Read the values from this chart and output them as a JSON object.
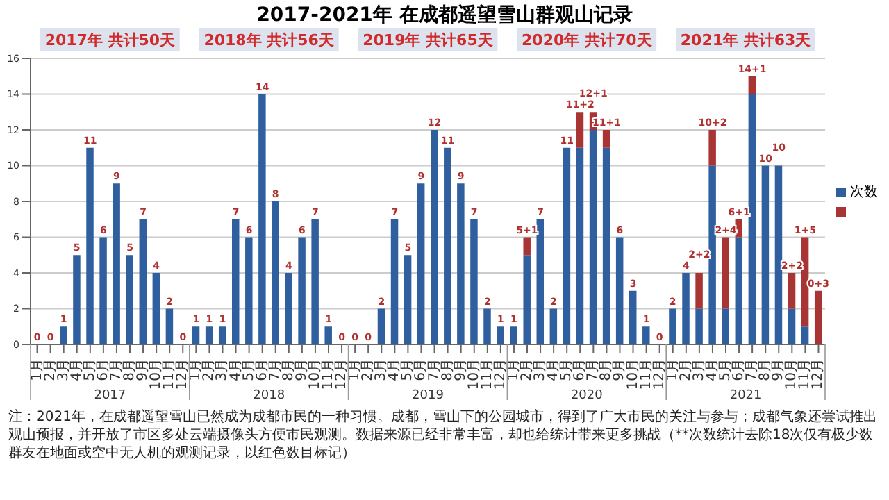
{
  "chart_data": {
    "type": "bar",
    "title": "2017-2021年 在成都遥望雪山群观山记录",
    "categories": [
      "1月",
      "2月",
      "3月",
      "4月",
      "5月",
      "6月",
      "7月",
      "8月",
      "9月",
      "10月",
      "11月",
      "12月",
      "1月",
      "2月",
      "3月",
      "4月",
      "5月",
      "6月",
      "7月",
      "8月",
      "9月",
      "10月",
      "11月",
      "12月",
      "1月",
      "2月",
      "3月",
      "4月",
      "5月",
      "6月",
      "7月",
      "8月",
      "9月",
      "10月",
      "11月",
      "12月",
      "1月",
      "2月",
      "3月",
      "4月",
      "5月",
      "6月",
      "7月",
      "8月",
      "9月",
      "10月",
      "11月",
      "12月",
      "1月",
      "2月",
      "3月",
      "4月",
      "5月",
      "6月",
      "7月",
      "8月",
      "9月",
      "10月",
      "11月",
      "12月"
    ],
    "series": [
      {
        "name": "次数",
        "color": "#2f5f9e",
        "values": [
          0,
          0,
          1,
          5,
          11,
          6,
          9,
          5,
          7,
          4,
          2,
          0,
          1,
          1,
          1,
          7,
          6,
          14,
          8,
          4,
          6,
          7,
          1,
          0,
          0,
          0,
          2,
          7,
          5,
          9,
          12,
          11,
          9,
          7,
          2,
          1,
          1,
          5,
          7,
          2,
          11,
          11,
          12,
          11,
          6,
          3,
          1,
          0,
          2,
          4,
          2,
          10,
          2,
          6,
          14,
          10,
          10,
          2,
          1,
          0
        ],
        "value_labels": [
          "0",
          "0",
          "1",
          "5",
          "11",
          "6",
          "9",
          "5",
          "7",
          "4",
          "2",
          "0",
          "1",
          "1",
          "1",
          "7",
          "6",
          "14",
          "8",
          "4",
          "6",
          "7",
          "1",
          "0",
          "0",
          "0",
          "2",
          "7",
          "5",
          "9",
          "12",
          "11",
          "9",
          "7",
          "2",
          "1",
          "1",
          null,
          "7",
          "2",
          "11",
          null,
          null,
          null,
          "6",
          "3",
          "1",
          "0",
          "2",
          "4",
          null,
          null,
          null,
          null,
          null,
          "10",
          "10",
          null,
          null,
          null
        ]
      },
      {
        "color": "#a83434",
        "value_labels": [
          null,
          null,
          null,
          null,
          null,
          null,
          null,
          null,
          null,
          null,
          null,
          null,
          null,
          null,
          null,
          null,
          null,
          null,
          null,
          null,
          null,
          null,
          null,
          null,
          null,
          null,
          null,
          null,
          null,
          null,
          null,
          null,
          null,
          null,
          null,
          null,
          null,
          "5+1",
          null,
          null,
          null,
          "11+2",
          "12+1",
          "11+1",
          null,
          null,
          null,
          null,
          null,
          null,
          "2+2",
          "10+2",
          "2+4",
          "6+1",
          "14+1",
          null,
          null,
          "2+2",
          "1+5",
          "0+3"
        ],
        "values": [
          null,
          null,
          null,
          null,
          null,
          null,
          null,
          null,
          null,
          null,
          null,
          null,
          null,
          null,
          null,
          null,
          null,
          null,
          null,
          null,
          null,
          null,
          null,
          null,
          null,
          null,
          null,
          null,
          null,
          null,
          null,
          null,
          null,
          null,
          null,
          null,
          null,
          1,
          null,
          null,
          null,
          2,
          1,
          1,
          null,
          null,
          null,
          null,
          null,
          null,
          2,
          2,
          4,
          1,
          1,
          null,
          null,
          2,
          5,
          3
        ]
      }
    ],
    "stacked": true,
    "ylim": [
      0,
      16
    ],
    "yticks": [
      0,
      2,
      4,
      6,
      8,
      10,
      12,
      14,
      16
    ],
    "grid": "y",
    "legend": "right",
    "annotations": [
      "2017年 共计50天",
      "2018年 共计56天",
      "2019年 共计65天",
      "2020年 共计70天",
      "2021年 共计63天",
      "2017",
      "2018",
      "2019",
      "2020",
      "2021",
      "注：2021年，在成都遥望雪山已然成为成都市民的一种习惯。成都，雪山下的公园城市，得到了广大市民的关注与参与；成都气象还尝试推出观山预报，并开放了市区多处云端摄像头方便市民观测。数据来源已经非常丰富，却也给统计带来更多挑战（**次数统计去除18次仅有极少数群友在地面或空中无人机的观测记录，以红色数目标记）"
    ]
  }
}
